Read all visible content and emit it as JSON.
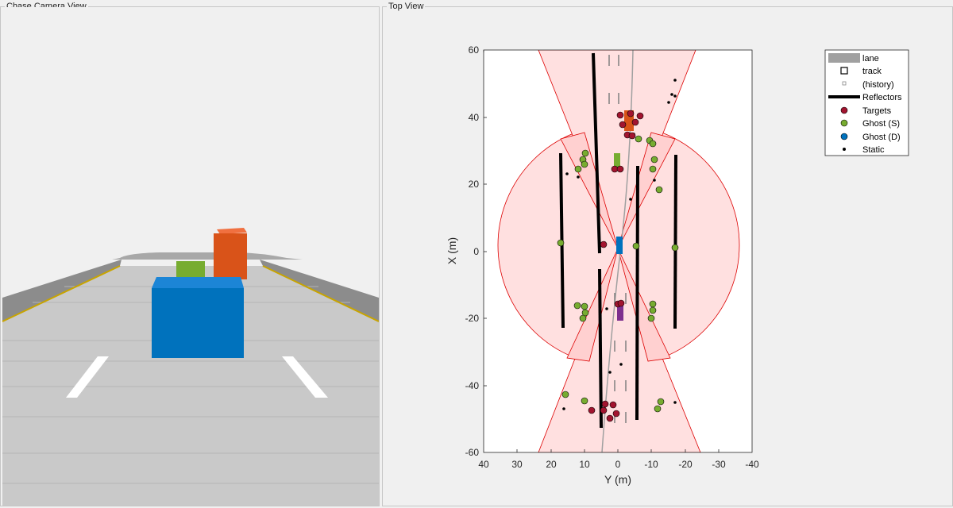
{
  "panels": {
    "left_title": "Chase Camera View",
    "right_title": "Top View"
  },
  "top_view": {
    "xlabel": "Y (m)",
    "ylabel": "X (m)",
    "x_ticks": [
      "40",
      "30",
      "20",
      "10",
      "0",
      "-10",
      "-20",
      "-30",
      "-40"
    ],
    "y_ticks": [
      "60",
      "40",
      "20",
      "0",
      "-20",
      "-40",
      "-60"
    ]
  },
  "legend": {
    "items": [
      {
        "label": "lane",
        "icon": "lane-swatch",
        "color": "#a0a0a0"
      },
      {
        "label": "track",
        "icon": "square-marker",
        "color": "#000000"
      },
      {
        "label": "(history)",
        "icon": "small-square-marker",
        "color": "#888888"
      },
      {
        "label": "Reflectors",
        "icon": "thick-line",
        "color": "#000000"
      },
      {
        "label": "Targets",
        "icon": "circle-marker",
        "color": "#a2142f"
      },
      {
        "label": "Ghost (S)",
        "icon": "circle-marker",
        "color": "#77ac30"
      },
      {
        "label": "Ghost (D)",
        "icon": "circle-marker",
        "color": "#0072bd"
      },
      {
        "label": "Static",
        "icon": "dot-marker",
        "color": "#000000"
      }
    ]
  },
  "colors": {
    "ego": "#0072bd",
    "lead_car": "#d95319",
    "second_car": "#77ac30",
    "rear_car": "#7e2f8e",
    "coverage": "#ffe0e0",
    "coverage_edge": "#dd0000"
  }
}
